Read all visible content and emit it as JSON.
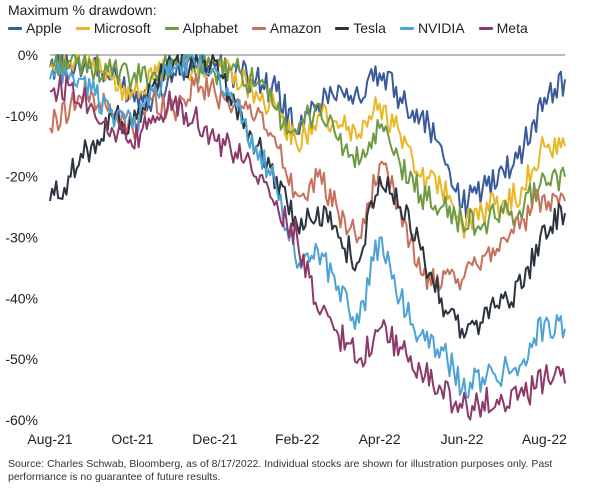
{
  "chart_data": {
    "type": "line",
    "title": "Maximum % drawdown:",
    "xlabel": "",
    "ylabel": "",
    "ylim": [
      -60,
      0
    ],
    "yticks": [
      0,
      -10,
      -20,
      -30,
      -40,
      -50,
      -60
    ],
    "ytick_labels": [
      "0%",
      "-10%",
      "-20%",
      "-30%",
      "-40%",
      "-50%",
      "-60%"
    ],
    "x_tick_labels": [
      "Aug-21",
      "Oct-21",
      "Dec-21",
      "Feb-22",
      "Apr-22",
      "Jun-22",
      "Aug-22"
    ],
    "x_months": [
      0,
      2,
      4,
      6,
      8,
      10,
      12
    ],
    "grid": false,
    "legend_position": "top",
    "series": [
      {
        "name": "Apple",
        "color": "#3a5a9c",
        "x": [
          0,
          0.5,
          1,
          1.5,
          2,
          2.5,
          3,
          3.5,
          4,
          4.5,
          5,
          5.5,
          6,
          6.5,
          7,
          7.5,
          8,
          8.5,
          9,
          9.5,
          10,
          10.5,
          11,
          11.5,
          12,
          12.5
        ],
        "values": [
          -2,
          -1,
          -2,
          -4,
          -6,
          -7,
          -3,
          -1,
          -2,
          -3,
          -4,
          -6,
          -13,
          -8,
          -5,
          -7,
          -3,
          -7,
          -10,
          -15,
          -25,
          -22,
          -19,
          -15,
          -7,
          -4
        ]
      },
      {
        "name": "Microsoft",
        "color": "#e8b828",
        "x": [
          0,
          0.5,
          1,
          1.5,
          2,
          2.5,
          3,
          3.5,
          4,
          4.5,
          5,
          5.5,
          6,
          6.5,
          7,
          7.5,
          8,
          8.5,
          9,
          9.5,
          10,
          10.5,
          11,
          11.5,
          12,
          12.5
        ],
        "values": [
          -2,
          -1,
          -2,
          -4,
          -6,
          -4,
          -1,
          -2,
          -1,
          -3,
          -6,
          -9,
          -15,
          -10,
          -12,
          -13,
          -8,
          -13,
          -20,
          -22,
          -28,
          -26,
          -24,
          -22,
          -15,
          -15
        ]
      },
      {
        "name": "Alphabet",
        "color": "#6f9a44",
        "x": [
          0,
          0.5,
          1,
          1.5,
          2,
          2.5,
          3,
          3.5,
          4,
          4.5,
          5,
          5.5,
          6,
          6.5,
          7,
          7.5,
          8,
          8.5,
          9,
          9.5,
          10,
          10.5,
          11,
          11.5,
          12,
          12.5
        ],
        "values": [
          -1,
          -1,
          -2,
          -3,
          -4,
          -3,
          -1,
          -2,
          -3,
          -2,
          -5,
          -9,
          -13,
          -8,
          -14,
          -18,
          -12,
          -18,
          -23,
          -25,
          -27,
          -28,
          -26,
          -25,
          -20,
          -20
        ]
      },
      {
        "name": "Amazon",
        "color": "#c7715c",
        "x": [
          0,
          0.5,
          1,
          1.5,
          2,
          2.5,
          3,
          3.5,
          4,
          4.5,
          5,
          5.5,
          6,
          6.5,
          7,
          7.5,
          8,
          8.5,
          9,
          9.5,
          10,
          10.5,
          11,
          11.5,
          12,
          12.5
        ],
        "values": [
          -12,
          -8,
          -6,
          -10,
          -12,
          -7,
          -9,
          -5,
          -6,
          -8,
          -10,
          -15,
          -23,
          -20,
          -26,
          -30,
          -18,
          -25,
          -36,
          -38,
          -37,
          -33,
          -30,
          -27,
          -23,
          -24
        ]
      },
      {
        "name": "Tesla",
        "color": "#2c3440",
        "x": [
          0,
          0.5,
          1,
          1.5,
          2,
          2.5,
          3,
          3.5,
          4,
          4.5,
          5,
          5.5,
          6,
          6.5,
          7,
          7.5,
          8,
          8.5,
          9,
          9.5,
          10,
          10.5,
          11,
          11.5,
          12,
          12.5
        ],
        "values": [
          -24,
          -20,
          -15,
          -10,
          -12,
          -5,
          -1,
          -2,
          -1,
          -8,
          -15,
          -20,
          -28,
          -25,
          -30,
          -34,
          -20,
          -25,
          -32,
          -40,
          -45,
          -44,
          -40,
          -38,
          -28,
          -26
        ]
      },
      {
        "name": "NVIDIA",
        "color": "#4da3d6",
        "x": [
          0,
          0.5,
          1,
          1.5,
          2,
          2.5,
          3,
          3.5,
          4,
          4.5,
          5,
          5.5,
          6,
          6.5,
          7,
          7.5,
          8,
          8.5,
          9,
          9.5,
          10,
          10.5,
          11,
          11.5,
          12,
          12.5
        ],
        "values": [
          -4,
          -3,
          -6,
          -9,
          -12,
          -6,
          -2,
          -1,
          -2,
          -8,
          -15,
          -22,
          -35,
          -32,
          -38,
          -44,
          -30,
          -40,
          -46,
          -48,
          -55,
          -53,
          -52,
          -50,
          -44,
          -45
        ]
      },
      {
        "name": "Meta",
        "color": "#8c3a6a",
        "x": [
          0,
          0.5,
          1,
          1.5,
          2,
          2.5,
          3,
          3.5,
          4,
          4.5,
          5,
          5.5,
          6,
          6.5,
          7,
          7.5,
          8,
          8.5,
          9,
          9.5,
          10,
          10.5,
          11,
          11.5,
          12,
          12.5
        ],
        "values": [
          -6,
          -5,
          -8,
          -12,
          -15,
          -10,
          -8,
          -10,
          -14,
          -16,
          -20,
          -24,
          -30,
          -42,
          -46,
          -50,
          -45,
          -48,
          -52,
          -55,
          -58,
          -57,
          -57,
          -56,
          -53,
          -54
        ]
      }
    ],
    "source_note": "Source: Charles Schwab, Bloomberg, as of 8/17/2022. Individual stocks are shown for illustration purposes only. Past performance is no guarantee of future results."
  }
}
